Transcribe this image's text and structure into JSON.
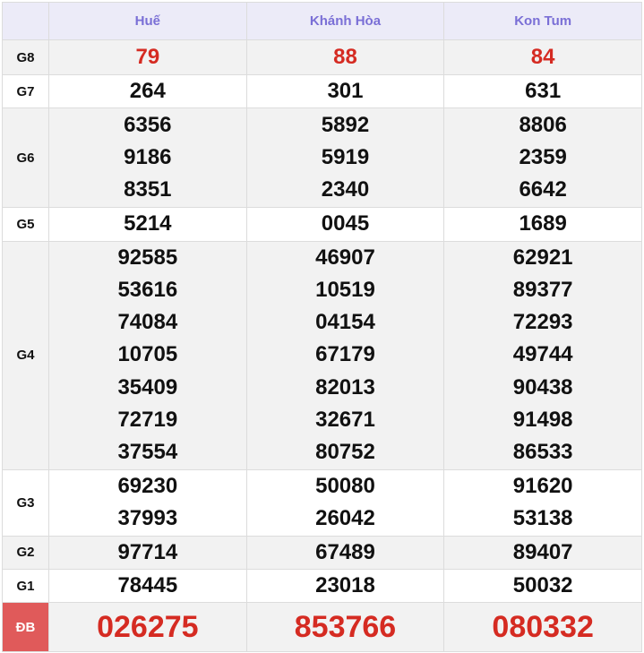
{
  "header": {
    "provinces": [
      "Huế",
      "Khánh Hòa",
      "Kon Tum"
    ]
  },
  "rows": [
    {
      "label": "G8",
      "values": [
        [
          "79"
        ],
        [
          "88"
        ],
        [
          "84"
        ]
      ]
    },
    {
      "label": "G7",
      "values": [
        [
          "264"
        ],
        [
          "301"
        ],
        [
          "631"
        ]
      ]
    },
    {
      "label": "G6",
      "values": [
        [
          "6356",
          "9186",
          "8351"
        ],
        [
          "5892",
          "5919",
          "2340"
        ],
        [
          "8806",
          "2359",
          "6642"
        ]
      ]
    },
    {
      "label": "G5",
      "values": [
        [
          "5214"
        ],
        [
          "0045"
        ],
        [
          "1689"
        ]
      ]
    },
    {
      "label": "G4",
      "values": [
        [
          "92585",
          "53616",
          "74084",
          "10705",
          "35409",
          "72719",
          "37554"
        ],
        [
          "46907",
          "10519",
          "04154",
          "67179",
          "82013",
          "32671",
          "80752"
        ],
        [
          "62921",
          "89377",
          "72293",
          "49744",
          "90438",
          "91498",
          "86533"
        ]
      ]
    },
    {
      "label": "G3",
      "values": [
        [
          "69230",
          "37993"
        ],
        [
          "50080",
          "26042"
        ],
        [
          "91620",
          "53138"
        ]
      ]
    },
    {
      "label": "G2",
      "values": [
        [
          "97714"
        ],
        [
          "67489"
        ],
        [
          "89407"
        ]
      ]
    },
    {
      "label": "G1",
      "values": [
        [
          "78445"
        ],
        [
          "23018"
        ],
        [
          "50032"
        ]
      ]
    },
    {
      "label": "ĐB",
      "values": [
        [
          "026275"
        ],
        [
          "853766"
        ],
        [
          "080332"
        ]
      ]
    }
  ],
  "colors": {
    "header_bg": "#ecebf8",
    "header_text": "#7a6fd6",
    "highlight": "#d52b22",
    "special_label_bg": "#e05a5a"
  }
}
